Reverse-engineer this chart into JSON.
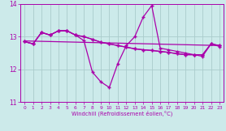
{
  "xlabel": "Windchill (Refroidissement éolien,°C)",
  "background_color": "#cceaea",
  "grid_color": "#aacccc",
  "line_color": "#aa00aa",
  "xlim": [
    -0.5,
    23.5
  ],
  "ylim": [
    11,
    14
  ],
  "yticks": [
    11,
    12,
    13,
    14
  ],
  "xticks": [
    0,
    1,
    2,
    3,
    4,
    5,
    6,
    7,
    8,
    9,
    10,
    11,
    12,
    13,
    14,
    15,
    16,
    17,
    18,
    19,
    20,
    21,
    22,
    23
  ],
  "hours": [
    0,
    1,
    2,
    3,
    4,
    5,
    6,
    7,
    8,
    9,
    10,
    11,
    12,
    13,
    14,
    15,
    16,
    17,
    18,
    19,
    20,
    21,
    22,
    23
  ],
  "line_temp": [
    12.85,
    12.78,
    13.13,
    13.05,
    13.18,
    13.18,
    13.05,
    13.0,
    12.92,
    12.83,
    12.78,
    12.73,
    12.68,
    12.63,
    12.6,
    12.58,
    12.55,
    12.52,
    12.48,
    12.45,
    12.45,
    12.45,
    12.78,
    12.73
  ],
  "line_wc1": [
    12.85,
    12.78,
    13.13,
    13.05,
    13.18,
    13.18,
    13.05,
    12.88,
    11.92,
    11.62,
    11.45,
    12.18,
    12.73,
    13.0,
    13.6,
    13.95,
    12.65,
    12.6,
    12.55,
    12.5,
    12.45,
    12.4,
    12.78,
    12.7
  ],
  "line_trend_x": [
    0,
    23
  ],
  "line_trend_y": [
    12.87,
    12.73
  ],
  "line_wc2": [
    12.85,
    12.78,
    13.13,
    13.05,
    13.18,
    13.18,
    13.05,
    13.0,
    12.92,
    12.83,
    12.78,
    12.73,
    12.68,
    12.63,
    12.6,
    12.58,
    12.55,
    12.52,
    12.48,
    12.45,
    12.45,
    12.45,
    12.78,
    12.73
  ]
}
